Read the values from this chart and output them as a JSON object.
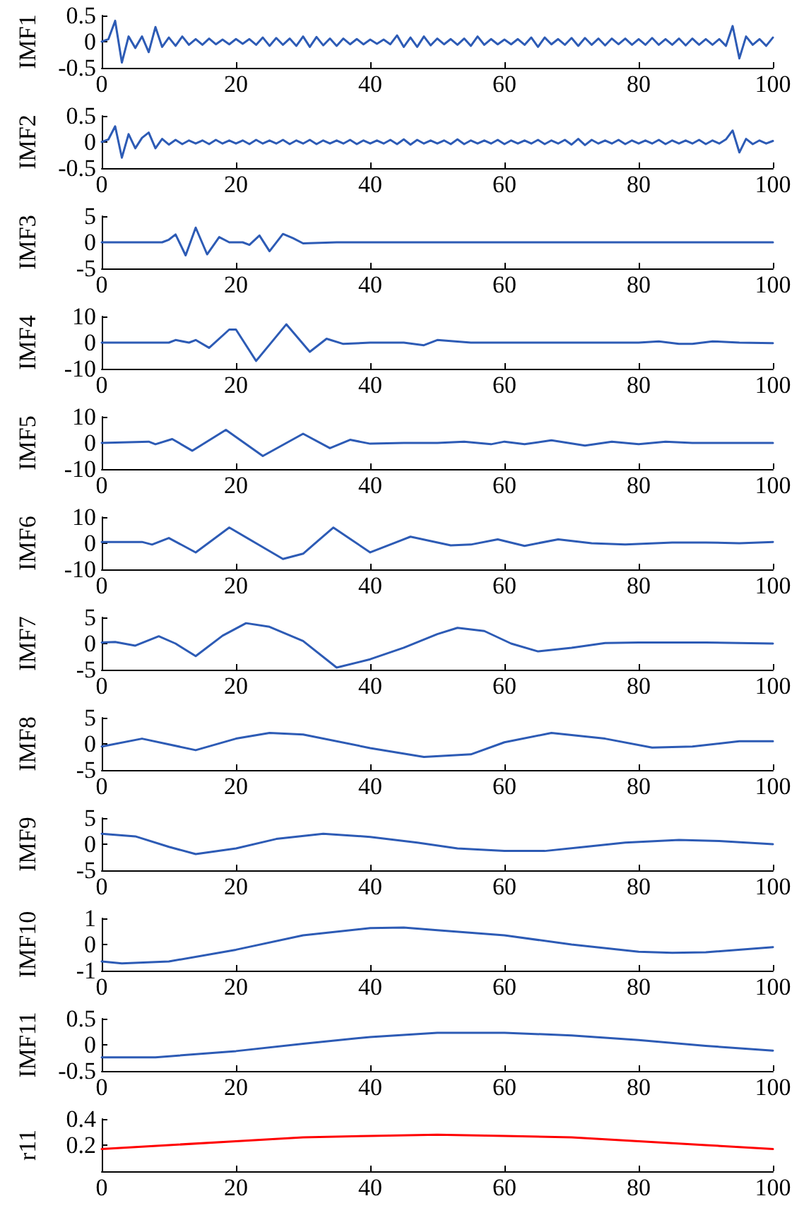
{
  "chart_data": [
    {
      "type": "line",
      "ylabel": "IMF1",
      "xlim": [
        0,
        100
      ],
      "xticks": [
        0,
        20,
        40,
        60,
        80,
        100
      ],
      "ylim": [
        -0.5,
        0.5
      ],
      "yticks": [
        -0.5,
        0,
        0.5
      ],
      "x": [
        0,
        1,
        2,
        3,
        4,
        5,
        6,
        7,
        8,
        9,
        10,
        11,
        12,
        13,
        14,
        15,
        16,
        17,
        18,
        19,
        20,
        21,
        22,
        23,
        24,
        25,
        26,
        27,
        28,
        29,
        30,
        31,
        32,
        33,
        34,
        35,
        36,
        37,
        38,
        39,
        40,
        41,
        42,
        43,
        44,
        45,
        46,
        47,
        48,
        49,
        50,
        51,
        52,
        53,
        54,
        55,
        56,
        57,
        58,
        59,
        60,
        61,
        62,
        63,
        64,
        65,
        66,
        67,
        68,
        69,
        70,
        71,
        72,
        73,
        74,
        75,
        76,
        77,
        78,
        79,
        80,
        81,
        82,
        83,
        84,
        85,
        86,
        87,
        88,
        89,
        90,
        91,
        92,
        93,
        94,
        95,
        96,
        97,
        98,
        99,
        100
      ],
      "series": [
        {
          "color": "#2d5bb5",
          "values": [
            0,
            0.05,
            0.4,
            -0.4,
            0.1,
            -0.12,
            0.1,
            -0.2,
            0.28,
            -0.1,
            0.08,
            -0.08,
            0.1,
            -0.06,
            0.05,
            -0.06,
            0.06,
            -0.05,
            0.04,
            -0.05,
            0.05,
            -0.04,
            0.05,
            -0.06,
            0.08,
            -0.08,
            0.07,
            -0.06,
            0.06,
            -0.08,
            0.1,
            -0.1,
            0.09,
            -0.07,
            0.06,
            -0.08,
            0.06,
            -0.05,
            0.05,
            -0.05,
            0.04,
            -0.04,
            0.04,
            -0.05,
            0.12,
            -0.1,
            0.08,
            -0.1,
            0.1,
            -0.07,
            0.06,
            -0.05,
            0.05,
            -0.06,
            0.06,
            -0.08,
            0.1,
            -0.06,
            0.05,
            -0.05,
            0.04,
            -0.05,
            0.05,
            -0.06,
            0.08,
            -0.1,
            0.08,
            -0.05,
            0.05,
            -0.06,
            0.07,
            -0.08,
            0.07,
            -0.06,
            0.06,
            -0.07,
            0.06,
            -0.05,
            0.06,
            -0.06,
            0.05,
            -0.06,
            0.07,
            -0.06,
            0.05,
            -0.06,
            0.06,
            -0.07,
            0.06,
            -0.06,
            0.05,
            -0.06,
            0.05,
            -0.08,
            0.3,
            -0.32,
            0.1,
            -0.06,
            0.05,
            -0.08,
            0.08
          ]
        }
      ]
    },
    {
      "type": "line",
      "ylabel": "IMF2",
      "xlim": [
        0,
        100
      ],
      "xticks": [
        0,
        20,
        40,
        60,
        80,
        100
      ],
      "ylim": [
        -0.5,
        0.5
      ],
      "yticks": [
        -0.5,
        0,
        0.5
      ],
      "x": [
        0,
        1,
        2,
        3,
        4,
        5,
        6,
        7,
        8,
        9,
        10,
        11,
        12,
        13,
        14,
        15,
        16,
        17,
        18,
        19,
        20,
        21,
        22,
        23,
        24,
        25,
        26,
        27,
        28,
        29,
        30,
        31,
        32,
        33,
        34,
        35,
        36,
        37,
        38,
        39,
        40,
        41,
        42,
        43,
        44,
        45,
        46,
        47,
        48,
        49,
        50,
        51,
        52,
        53,
        54,
        55,
        56,
        57,
        58,
        59,
        60,
        61,
        62,
        63,
        64,
        65,
        66,
        67,
        68,
        69,
        70,
        71,
        72,
        73,
        74,
        75,
        76,
        77,
        78,
        79,
        80,
        81,
        82,
        83,
        84,
        85,
        86,
        87,
        88,
        89,
        90,
        91,
        92,
        93,
        94,
        95,
        96,
        97,
        98,
        99,
        100
      ],
      "series": [
        {
          "color": "#2d5bb5",
          "values": [
            0,
            0.05,
            0.3,
            -0.3,
            0.15,
            -0.12,
            0.08,
            0.18,
            -0.12,
            0.06,
            -0.05,
            0.04,
            -0.04,
            0.03,
            -0.03,
            0.03,
            -0.04,
            0.04,
            -0.03,
            0.03,
            -0.03,
            0.03,
            -0.04,
            0.04,
            -0.03,
            0.03,
            -0.03,
            0.04,
            -0.04,
            0.03,
            -0.03,
            0.04,
            -0.04,
            0.03,
            -0.03,
            0.03,
            -0.03,
            0.04,
            -0.04,
            0.03,
            -0.03,
            0.03,
            -0.03,
            0.04,
            -0.04,
            0.05,
            -0.05,
            0.04,
            -0.03,
            0.03,
            -0.03,
            0.03,
            -0.04,
            0.05,
            -0.04,
            0.03,
            -0.03,
            0.03,
            -0.03,
            0.04,
            -0.04,
            0.03,
            -0.03,
            0.03,
            -0.03,
            0.04,
            -0.04,
            0.03,
            -0.03,
            0.04,
            -0.05,
            0.06,
            -0.06,
            0.04,
            -0.03,
            0.03,
            -0.03,
            0.04,
            -0.04,
            0.03,
            -0.03,
            0.03,
            -0.03,
            0.04,
            -0.04,
            0.03,
            -0.03,
            0.03,
            -0.03,
            0.04,
            -0.04,
            0.03,
            -0.03,
            0.05,
            0.22,
            -0.2,
            0.06,
            -0.04,
            0.03,
            -0.03,
            0.02
          ]
        }
      ]
    },
    {
      "type": "line",
      "ylabel": "IMF3",
      "xlim": [
        0,
        100
      ],
      "xticks": [
        0,
        20,
        40,
        60,
        80,
        100
      ],
      "ylim": [
        -5,
        5
      ],
      "yticks": [
        -5,
        0,
        5
      ],
      "x": [
        0,
        5,
        9,
        10,
        11,
        12.5,
        14,
        15.7,
        17.5,
        19,
        21,
        22,
        23.5,
        25,
        27,
        28.5,
        30,
        35,
        40,
        50,
        60,
        70,
        80,
        90,
        100
      ],
      "series": [
        {
          "color": "#2d5bb5",
          "values": [
            0,
            0,
            0,
            0.5,
            1.5,
            -2.5,
            2.8,
            -2.3,
            1,
            0,
            0,
            -0.5,
            1.3,
            -1.7,
            1.6,
            0.8,
            -0.2,
            0,
            0,
            0,
            0,
            0,
            0,
            0,
            0
          ]
        }
      ]
    },
    {
      "type": "line",
      "ylabel": "IMF4",
      "xlim": [
        0,
        100
      ],
      "xticks": [
        0,
        20,
        40,
        60,
        80,
        100
      ],
      "ylim": [
        -10,
        10
      ],
      "yticks": [
        -10,
        0,
        10
      ],
      "x": [
        0,
        10,
        11,
        13,
        14,
        16,
        19,
        20,
        23,
        27.5,
        31,
        33.5,
        36,
        40,
        45,
        48,
        50,
        55,
        60,
        65,
        70,
        75,
        80,
        83,
        86,
        88,
        91,
        95,
        100
      ],
      "series": [
        {
          "color": "#2d5bb5",
          "values": [
            0,
            0,
            1,
            0,
            1,
            -2,
            5,
            5,
            -7,
            7,
            -3.5,
            1.5,
            -0.5,
            0,
            0,
            -1,
            1,
            0,
            0,
            0,
            0,
            0,
            0,
            0.5,
            -0.5,
            -0.5,
            0.5,
            0,
            -0.2
          ]
        }
      ]
    },
    {
      "type": "line",
      "ylabel": "IMF5",
      "xlim": [
        0,
        100
      ],
      "xticks": [
        0,
        20,
        40,
        60,
        80,
        100
      ],
      "ylim": [
        -10,
        10
      ],
      "yticks": [
        -10,
        0,
        10
      ],
      "x": [
        0,
        7,
        8,
        10.5,
        13.5,
        18.5,
        24,
        30,
        34,
        37,
        40,
        45,
        50,
        54,
        58,
        60,
        63,
        67,
        72,
        76,
        80,
        84,
        88,
        100
      ],
      "series": [
        {
          "color": "#2d5bb5",
          "values": [
            0,
            0.5,
            -0.5,
            1.5,
            -3,
            5,
            -5,
            3.5,
            -2,
            1.2,
            -0.3,
            0,
            0,
            0.5,
            -0.5,
            0.5,
            -0.5,
            1,
            -1,
            0.5,
            -0.5,
            0.5,
            0,
            0
          ]
        }
      ]
    },
    {
      "type": "line",
      "ylabel": "IMF6",
      "xlim": [
        0,
        100
      ],
      "xticks": [
        0,
        20,
        40,
        60,
        80,
        100
      ],
      "ylim": [
        -10,
        10
      ],
      "yticks": [
        -10,
        0,
        10
      ],
      "x": [
        0,
        6,
        7.5,
        10,
        14,
        19,
        23,
        27,
        30,
        34.5,
        40,
        46,
        52,
        55,
        59,
        63,
        68,
        73,
        78,
        85,
        90,
        95,
        100
      ],
      "series": [
        {
          "color": "#2d5bb5",
          "values": [
            0.5,
            0.5,
            -0.5,
            2,
            -3.5,
            6,
            0,
            -6,
            -4,
            6,
            -3.5,
            2.5,
            -0.8,
            -0.5,
            1.5,
            -1,
            1.5,
            0,
            -0.5,
            0.3,
            0.3,
            0,
            0.5
          ]
        }
      ]
    },
    {
      "type": "line",
      "ylabel": "IMF7",
      "xlim": [
        0,
        100
      ],
      "xticks": [
        0,
        20,
        40,
        60,
        80,
        100
      ],
      "ylim": [
        -5,
        5
      ],
      "yticks": [
        -5,
        0,
        5
      ],
      "x": [
        0,
        2,
        5,
        8.5,
        11,
        14,
        18,
        21.5,
        25,
        30,
        35,
        40,
        45,
        50,
        53,
        57,
        61,
        65,
        70,
        75,
        80,
        90,
        100
      ],
      "series": [
        {
          "color": "#2d5bb5",
          "values": [
            0.2,
            0.3,
            -0.4,
            1.4,
            0,
            -2.4,
            1.5,
            3.9,
            3.2,
            0.5,
            -4.6,
            -3,
            -0.8,
            1.8,
            3,
            2.4,
            0,
            -1.5,
            -0.8,
            0.1,
            0.2,
            0.2,
            0
          ]
        }
      ]
    },
    {
      "type": "line",
      "ylabel": "IMF8",
      "xlim": [
        0,
        100
      ],
      "xticks": [
        0,
        20,
        40,
        60,
        80,
        100
      ],
      "ylim": [
        -5,
        5
      ],
      "yticks": [
        -5,
        0,
        5
      ],
      "x": [
        0,
        6,
        14,
        20,
        25,
        30,
        40,
        48,
        55,
        60,
        67,
        75,
        82,
        88,
        95,
        100
      ],
      "series": [
        {
          "color": "#2d5bb5",
          "values": [
            -0.5,
            1,
            -1.2,
            1,
            2.1,
            1.8,
            -0.8,
            -2.5,
            -2,
            0.3,
            2.1,
            1,
            -0.7,
            -0.5,
            0.5,
            0.5
          ]
        }
      ]
    },
    {
      "type": "line",
      "ylabel": "IMF9",
      "xlim": [
        0,
        100
      ],
      "xticks": [
        0,
        20,
        40,
        60,
        80,
        100
      ],
      "ylim": [
        -5,
        5
      ],
      "yticks": [
        -5,
        0,
        5
      ],
      "x": [
        0,
        5,
        10,
        14,
        20,
        26,
        33,
        40,
        47,
        53,
        60,
        66,
        72,
        78,
        86,
        92,
        100
      ],
      "series": [
        {
          "color": "#2d5bb5",
          "values": [
            2,
            1.5,
            -0.5,
            -1.9,
            -0.8,
            1,
            2,
            1.4,
            0.3,
            -0.8,
            -1.3,
            -1.3,
            -0.5,
            0.3,
            0.8,
            0.6,
            0
          ]
        }
      ]
    },
    {
      "type": "line",
      "ylabel": "IMF10",
      "xlim": [
        0,
        100
      ],
      "xticks": [
        0,
        20,
        40,
        60,
        80,
        100
      ],
      "ylim": [
        -1,
        1
      ],
      "yticks": [
        -1,
        0,
        1
      ],
      "x": [
        0,
        3,
        10,
        20,
        30,
        40,
        45,
        50,
        60,
        70,
        80,
        85,
        90,
        100
      ],
      "series": [
        {
          "color": "#2d5bb5",
          "values": [
            -0.65,
            -0.72,
            -0.65,
            -0.2,
            0.35,
            0.63,
            0.65,
            0.55,
            0.35,
            0,
            -0.28,
            -0.32,
            -0.3,
            -0.1
          ]
        }
      ]
    },
    {
      "type": "line",
      "ylabel": "IMF11",
      "xlim": [
        0,
        100
      ],
      "xticks": [
        0,
        20,
        40,
        60,
        80,
        100
      ],
      "ylim": [
        -0.5,
        0.5
      ],
      "yticks": [
        -0.5,
        0,
        0.5
      ],
      "x": [
        0,
        8,
        20,
        30,
        40,
        50,
        60,
        70,
        80,
        90,
        100
      ],
      "series": [
        {
          "color": "#2d5bb5",
          "values": [
            -0.24,
            -0.24,
            -0.12,
            0.02,
            0.15,
            0.23,
            0.23,
            0.18,
            0.09,
            -0.02,
            -0.11
          ]
        }
      ]
    },
    {
      "type": "line",
      "ylabel": "r11",
      "xlim": [
        0,
        100
      ],
      "xticks": [
        0,
        20,
        40,
        60,
        80,
        100
      ],
      "ylim": [
        0,
        0.4
      ],
      "yticks": [
        0.2,
        0.4
      ],
      "x": [
        0,
        10,
        20,
        30,
        40,
        50,
        60,
        70,
        80,
        90,
        100
      ],
      "series": [
        {
          "color": "#ff0000",
          "values": [
            0.17,
            0.2,
            0.23,
            0.26,
            0.27,
            0.28,
            0.27,
            0.26,
            0.23,
            0.2,
            0.17
          ]
        }
      ]
    }
  ]
}
